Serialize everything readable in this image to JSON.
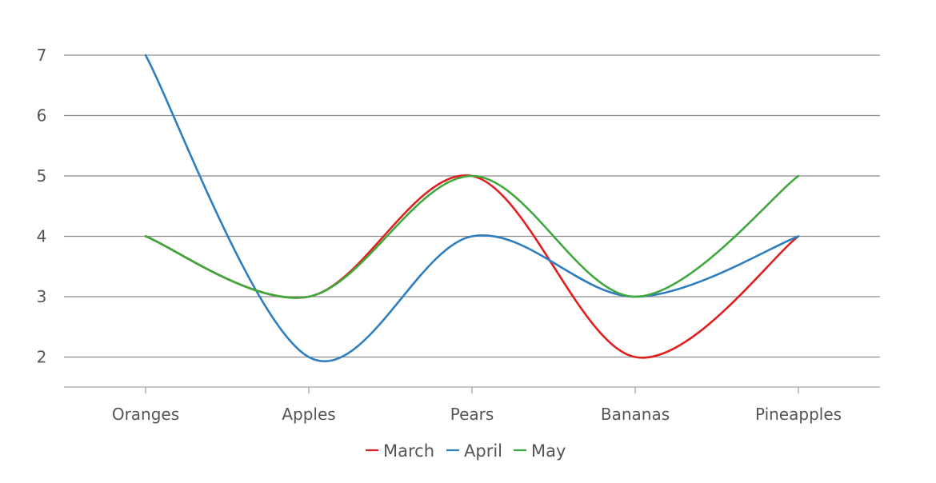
{
  "chart_data": {
    "type": "line",
    "title": "",
    "xlabel": "",
    "ylabel": "",
    "categories": [
      "Oranges",
      "Apples",
      "Pears",
      "Bananas",
      "Pineapples"
    ],
    "series": [
      {
        "name": "March",
        "color": "#e02020",
        "values": [
          4,
          3,
          5,
          2,
          4
        ]
      },
      {
        "name": "April",
        "color": "#2e7dbf",
        "values": [
          7,
          2,
          4,
          3,
          4
        ]
      },
      {
        "name": "May",
        "color": "#3ea83e",
        "values": [
          4,
          3,
          5,
          3,
          5
        ]
      }
    ],
    "ylim": [
      1.5,
      7
    ],
    "y_ticks": [
      "2",
      "3",
      "4",
      "5",
      "6",
      "7"
    ],
    "grid": true,
    "smooth": true,
    "legend_position": "bottom"
  }
}
